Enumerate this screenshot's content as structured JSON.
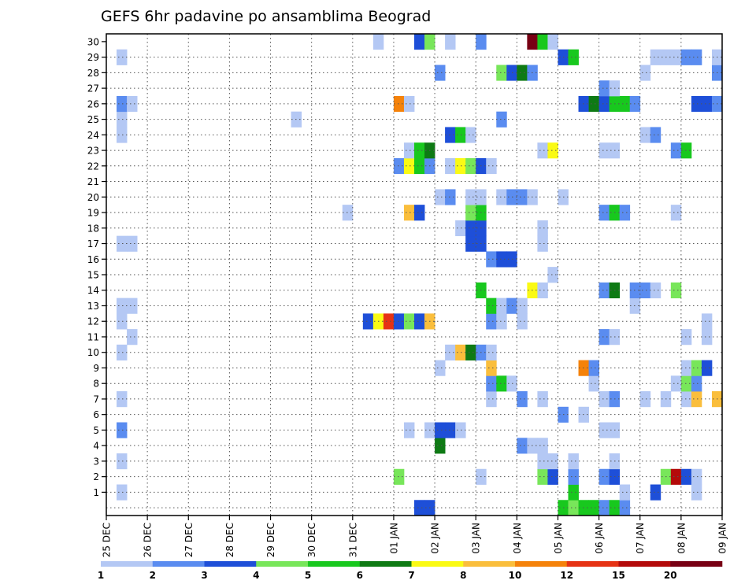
{
  "chart_data": {
    "type": "heatmap",
    "title": "GEFS 6hr padavine po ansamblima Beograd",
    "xlabel": "",
    "ylabel": "",
    "x_ticks": [
      "25 DEC",
      "26 DEC",
      "27 DEC",
      "28 DEC",
      "29 DEC",
      "30 DEC",
      "31 DEC",
      "01 JAN",
      "02 JAN",
      "03 JAN",
      "04 JAN",
      "05 JAN",
      "06 JAN",
      "07 JAN",
      "08 JAN",
      "09 JAN"
    ],
    "y_ticks": [
      "1",
      "2",
      "3",
      "4",
      "5",
      "6",
      "7",
      "8",
      "9",
      "10",
      "11",
      "12",
      "13",
      "14",
      "15",
      "16",
      "17",
      "18",
      "19",
      "20",
      "21",
      "22",
      "23",
      "24",
      "25",
      "26",
      "27",
      "28",
      "29",
      "30"
    ],
    "x_range_steps": [
      0,
      60
    ],
    "steps_per_day": 4,
    "y_range": [
      0,
      30
    ],
    "grid": true,
    "color_levels": [
      {
        "label": "1",
        "color": "#b4c8f4"
      },
      {
        "label": "2",
        "color": "#5a8cf0"
      },
      {
        "label": "3",
        "color": "#1e4fd8"
      },
      {
        "label": "4",
        "color": "#78e65a"
      },
      {
        "label": "5",
        "color": "#18c81e"
      },
      {
        "label": "6",
        "color": "#0e7a14"
      },
      {
        "label": "7",
        "color": "#fafa14"
      },
      {
        "label": "8",
        "color": "#fabe3c"
      },
      {
        "label": "10",
        "color": "#f5820a"
      },
      {
        "label": "12",
        "color": "#e63214"
      },
      {
        "label": "15",
        "color": "#b40a0a"
      },
      {
        "label": "20",
        "color": "#780014"
      }
    ],
    "cells": [
      {
        "m": 0,
        "t": 30,
        "l": 2
      },
      {
        "m": 0,
        "t": 31,
        "l": 2
      },
      {
        "m": 0,
        "t": 44,
        "l": 4
      },
      {
        "m": 0,
        "t": 45,
        "l": 3
      },
      {
        "m": 0,
        "t": 46,
        "l": 4
      },
      {
        "m": 0,
        "t": 47,
        "l": 4
      },
      {
        "m": 0,
        "t": 48,
        "l": 1
      },
      {
        "m": 0,
        "t": 49,
        "l": 4
      },
      {
        "m": 0,
        "t": 50,
        "l": 1
      },
      {
        "m": 1,
        "t": 1,
        "l": 0
      },
      {
        "m": 1,
        "t": 45,
        "l": 4
      },
      {
        "m": 1,
        "t": 50,
        "l": 0
      },
      {
        "m": 1,
        "t": 53,
        "l": 2
      },
      {
        "m": 1,
        "t": 57,
        "l": 0
      },
      {
        "m": 2,
        "t": 28,
        "l": 3
      },
      {
        "m": 2,
        "t": 36,
        "l": 0
      },
      {
        "m": 2,
        "t": 42,
        "l": 3
      },
      {
        "m": 2,
        "t": 43,
        "l": 2
      },
      {
        "m": 2,
        "t": 45,
        "l": 1
      },
      {
        "m": 2,
        "t": 48,
        "l": 1
      },
      {
        "m": 2,
        "t": 49,
        "l": 2
      },
      {
        "m": 2,
        "t": 54,
        "l": 3
      },
      {
        "m": 2,
        "t": 55,
        "l": 10
      },
      {
        "m": 2,
        "t": 56,
        "l": 2
      },
      {
        "m": 2,
        "t": 57,
        "l": 0
      },
      {
        "m": 3,
        "t": 1,
        "l": 0
      },
      {
        "m": 3,
        "t": 42,
        "l": 0
      },
      {
        "m": 3,
        "t": 43,
        "l": 0
      },
      {
        "m": 3,
        "t": 45,
        "l": 0
      },
      {
        "m": 3,
        "t": 49,
        "l": 0
      },
      {
        "m": 4,
        "t": 32,
        "l": 5
      },
      {
        "m": 4,
        "t": 40,
        "l": 1
      },
      {
        "m": 4,
        "t": 41,
        "l": 0
      },
      {
        "m": 4,
        "t": 42,
        "l": 0
      },
      {
        "m": 5,
        "t": 1,
        "l": 1
      },
      {
        "m": 5,
        "t": 29,
        "l": 0
      },
      {
        "m": 5,
        "t": 31,
        "l": 0
      },
      {
        "m": 5,
        "t": 32,
        "l": 2
      },
      {
        "m": 5,
        "t": 33,
        "l": 2
      },
      {
        "m": 5,
        "t": 34,
        "l": 0
      },
      {
        "m": 5,
        "t": 48,
        "l": 0
      },
      {
        "m": 5,
        "t": 49,
        "l": 0
      },
      {
        "m": 6,
        "t": 44,
        "l": 1
      },
      {
        "m": 6,
        "t": 46,
        "l": 0
      },
      {
        "m": 7,
        "t": 1,
        "l": 0
      },
      {
        "m": 7,
        "t": 37,
        "l": 0
      },
      {
        "m": 7,
        "t": 40,
        "l": 1
      },
      {
        "m": 7,
        "t": 42,
        "l": 0
      },
      {
        "m": 7,
        "t": 48,
        "l": 0
      },
      {
        "m": 7,
        "t": 49,
        "l": 1
      },
      {
        "m": 7,
        "t": 52,
        "l": 0
      },
      {
        "m": 7,
        "t": 54,
        "l": 0
      },
      {
        "m": 7,
        "t": 56,
        "l": 0
      },
      {
        "m": 7,
        "t": 57,
        "l": 7
      },
      {
        "m": 7,
        "t": 59,
        "l": 7
      },
      {
        "m": 8,
        "t": 37,
        "l": 1
      },
      {
        "m": 8,
        "t": 38,
        "l": 4
      },
      {
        "m": 8,
        "t": 39,
        "l": 0
      },
      {
        "m": 8,
        "t": 47,
        "l": 0
      },
      {
        "m": 8,
        "t": 55,
        "l": 0
      },
      {
        "m": 8,
        "t": 56,
        "l": 3
      },
      {
        "m": 8,
        "t": 57,
        "l": 1
      },
      {
        "m": 9,
        "t": 32,
        "l": 0
      },
      {
        "m": 9,
        "t": 37,
        "l": 7
      },
      {
        "m": 9,
        "t": 46,
        "l": 8
      },
      {
        "m": 9,
        "t": 47,
        "l": 1
      },
      {
        "m": 9,
        "t": 56,
        "l": 0
      },
      {
        "m": 9,
        "t": 57,
        "l": 3
      },
      {
        "m": 9,
        "t": 58,
        "l": 2
      },
      {
        "m": 10,
        "t": 1,
        "l": 0
      },
      {
        "m": 10,
        "t": 33,
        "l": 0
      },
      {
        "m": 10,
        "t": 34,
        "l": 7
      },
      {
        "m": 10,
        "t": 35,
        "l": 5
      },
      {
        "m": 10,
        "t": 36,
        "l": 1
      },
      {
        "m": 10,
        "t": 37,
        "l": 0
      },
      {
        "m": 11,
        "t": 2,
        "l": 0
      },
      {
        "m": 11,
        "t": 48,
        "l": 1
      },
      {
        "m": 11,
        "t": 49,
        "l": 0
      },
      {
        "m": 11,
        "t": 56,
        "l": 0
      },
      {
        "m": 11,
        "t": 58,
        "l": 0
      },
      {
        "m": 12,
        "t": 1,
        "l": 0
      },
      {
        "m": 12,
        "t": 25,
        "l": 2
      },
      {
        "m": 12,
        "t": 26,
        "l": 6
      },
      {
        "m": 12,
        "t": 27,
        "l": 9
      },
      {
        "m": 12,
        "t": 28,
        "l": 2
      },
      {
        "m": 12,
        "t": 29,
        "l": 3
      },
      {
        "m": 12,
        "t": 30,
        "l": 2
      },
      {
        "m": 12,
        "t": 31,
        "l": 7
      },
      {
        "m": 12,
        "t": 37,
        "l": 1
      },
      {
        "m": 12,
        "t": 38,
        "l": 0
      },
      {
        "m": 12,
        "t": 40,
        "l": 0
      },
      {
        "m": 12,
        "t": 58,
        "l": 0
      },
      {
        "m": 13,
        "t": 1,
        "l": 0
      },
      {
        "m": 13,
        "t": 2,
        "l": 0
      },
      {
        "m": 13,
        "t": 37,
        "l": 4
      },
      {
        "m": 13,
        "t": 38,
        "l": 0
      },
      {
        "m": 13,
        "t": 39,
        "l": 1
      },
      {
        "m": 13,
        "t": 40,
        "l": 0
      },
      {
        "m": 13,
        "t": 51,
        "l": 0
      },
      {
        "m": 14,
        "t": 36,
        "l": 4
      },
      {
        "m": 14,
        "t": 41,
        "l": 6
      },
      {
        "m": 14,
        "t": 42,
        "l": 0
      },
      {
        "m": 14,
        "t": 48,
        "l": 1
      },
      {
        "m": 14,
        "t": 49,
        "l": 5
      },
      {
        "m": 14,
        "t": 51,
        "l": 1
      },
      {
        "m": 14,
        "t": 52,
        "l": 1
      },
      {
        "m": 14,
        "t": 53,
        "l": 0
      },
      {
        "m": 14,
        "t": 55,
        "l": 3
      },
      {
        "m": 15,
        "t": 43,
        "l": 0
      },
      {
        "m": 16,
        "t": 37,
        "l": 1
      },
      {
        "m": 16,
        "t": 38,
        "l": 2
      },
      {
        "m": 16,
        "t": 39,
        "l": 2
      },
      {
        "m": 17,
        "t": 1,
        "l": 0
      },
      {
        "m": 17,
        "t": 2,
        "l": 0
      },
      {
        "m": 17,
        "t": 35,
        "l": 2
      },
      {
        "m": 17,
        "t": 36,
        "l": 2
      },
      {
        "m": 17,
        "t": 42,
        "l": 0
      },
      {
        "m": 18,
        "t": 34,
        "l": 0
      },
      {
        "m": 18,
        "t": 35,
        "l": 2
      },
      {
        "m": 18,
        "t": 36,
        "l": 2
      },
      {
        "m": 18,
        "t": 42,
        "l": 0
      },
      {
        "m": 19,
        "t": 23,
        "l": 0
      },
      {
        "m": 19,
        "t": 29,
        "l": 7
      },
      {
        "m": 19,
        "t": 30,
        "l": 2
      },
      {
        "m": 19,
        "t": 35,
        "l": 3
      },
      {
        "m": 19,
        "t": 36,
        "l": 4
      },
      {
        "m": 19,
        "t": 48,
        "l": 1
      },
      {
        "m": 19,
        "t": 49,
        "l": 4
      },
      {
        "m": 19,
        "t": 50,
        "l": 1
      },
      {
        "m": 19,
        "t": 55,
        "l": 0
      },
      {
        "m": 20,
        "t": 32,
        "l": 0
      },
      {
        "m": 20,
        "t": 33,
        "l": 1
      },
      {
        "m": 20,
        "t": 35,
        "l": 0
      },
      {
        "m": 20,
        "t": 36,
        "l": 0
      },
      {
        "m": 20,
        "t": 38,
        "l": 0
      },
      {
        "m": 20,
        "t": 39,
        "l": 1
      },
      {
        "m": 20,
        "t": 40,
        "l": 1
      },
      {
        "m": 20,
        "t": 41,
        "l": 0
      },
      {
        "m": 20,
        "t": 44,
        "l": 0
      },
      {
        "m": 22,
        "t": 28,
        "l": 1
      },
      {
        "m": 22,
        "t": 29,
        "l": 6
      },
      {
        "m": 22,
        "t": 30,
        "l": 4
      },
      {
        "m": 22,
        "t": 31,
        "l": 1
      },
      {
        "m": 22,
        "t": 33,
        "l": 0
      },
      {
        "m": 22,
        "t": 34,
        "l": 6
      },
      {
        "m": 22,
        "t": 35,
        "l": 3
      },
      {
        "m": 22,
        "t": 36,
        "l": 2
      },
      {
        "m": 22,
        "t": 37,
        "l": 0
      },
      {
        "m": 23,
        "t": 29,
        "l": 0
      },
      {
        "m": 23,
        "t": 30,
        "l": 4
      },
      {
        "m": 23,
        "t": 31,
        "l": 5
      },
      {
        "m": 23,
        "t": 42,
        "l": 0
      },
      {
        "m": 23,
        "t": 43,
        "l": 6
      },
      {
        "m": 23,
        "t": 48,
        "l": 0
      },
      {
        "m": 23,
        "t": 49,
        "l": 0
      },
      {
        "m": 23,
        "t": 55,
        "l": 1
      },
      {
        "m": 23,
        "t": 56,
        "l": 4
      },
      {
        "m": 24,
        "t": 1,
        "l": 0
      },
      {
        "m": 24,
        "t": 33,
        "l": 2
      },
      {
        "m": 24,
        "t": 34,
        "l": 4
      },
      {
        "m": 24,
        "t": 35,
        "l": 0
      },
      {
        "m": 24,
        "t": 52,
        "l": 0
      },
      {
        "m": 24,
        "t": 53,
        "l": 1
      },
      {
        "m": 25,
        "t": 1,
        "l": 0
      },
      {
        "m": 25,
        "t": 18,
        "l": 0
      },
      {
        "m": 25,
        "t": 38,
        "l": 1
      },
      {
        "m": 26,
        "t": 1,
        "l": 1
      },
      {
        "m": 26,
        "t": 2,
        "l": 0
      },
      {
        "m": 26,
        "t": 28,
        "l": 8
      },
      {
        "m": 26,
        "t": 29,
        "l": 0
      },
      {
        "m": 26,
        "t": 46,
        "l": 2
      },
      {
        "m": 26,
        "t": 47,
        "l": 5
      },
      {
        "m": 26,
        "t": 48,
        "l": 2
      },
      {
        "m": 26,
        "t": 49,
        "l": 4
      },
      {
        "m": 26,
        "t": 50,
        "l": 4
      },
      {
        "m": 26,
        "t": 51,
        "l": 1
      },
      {
        "m": 26,
        "t": 57,
        "l": 2
      },
      {
        "m": 26,
        "t": 58,
        "l": 2
      },
      {
        "m": 26,
        "t": 59,
        "l": 1
      },
      {
        "m": 27,
        "t": 48,
        "l": 1
      },
      {
        "m": 27,
        "t": 49,
        "l": 0
      },
      {
        "m": 28,
        "t": 32,
        "l": 1
      },
      {
        "m": 28,
        "t": 38,
        "l": 3
      },
      {
        "m": 28,
        "t": 39,
        "l": 2
      },
      {
        "m": 28,
        "t": 40,
        "l": 5
      },
      {
        "m": 28,
        "t": 41,
        "l": 1
      },
      {
        "m": 28,
        "t": 52,
        "l": 0
      },
      {
        "m": 28,
        "t": 59,
        "l": 1
      },
      {
        "m": 29,
        "t": 1,
        "l": 0
      },
      {
        "m": 29,
        "t": 44,
        "l": 2
      },
      {
        "m": 29,
        "t": 45,
        "l": 4
      },
      {
        "m": 29,
        "t": 53,
        "l": 0
      },
      {
        "m": 29,
        "t": 54,
        "l": 0
      },
      {
        "m": 29,
        "t": 55,
        "l": 0
      },
      {
        "m": 29,
        "t": 56,
        "l": 1
      },
      {
        "m": 29,
        "t": 57,
        "l": 1
      },
      {
        "m": 29,
        "t": 59,
        "l": 0
      },
      {
        "m": 30,
        "t": 26,
        "l": 0
      },
      {
        "m": 30,
        "t": 30,
        "l": 2
      },
      {
        "m": 30,
        "t": 31,
        "l": 3
      },
      {
        "m": 30,
        "t": 33,
        "l": 0
      },
      {
        "m": 30,
        "t": 36,
        "l": 1
      },
      {
        "m": 30,
        "t": 41,
        "l": 11
      },
      {
        "m": 30,
        "t": 42,
        "l": 4
      },
      {
        "m": 30,
        "t": 43,
        "l": 0
      }
    ]
  }
}
